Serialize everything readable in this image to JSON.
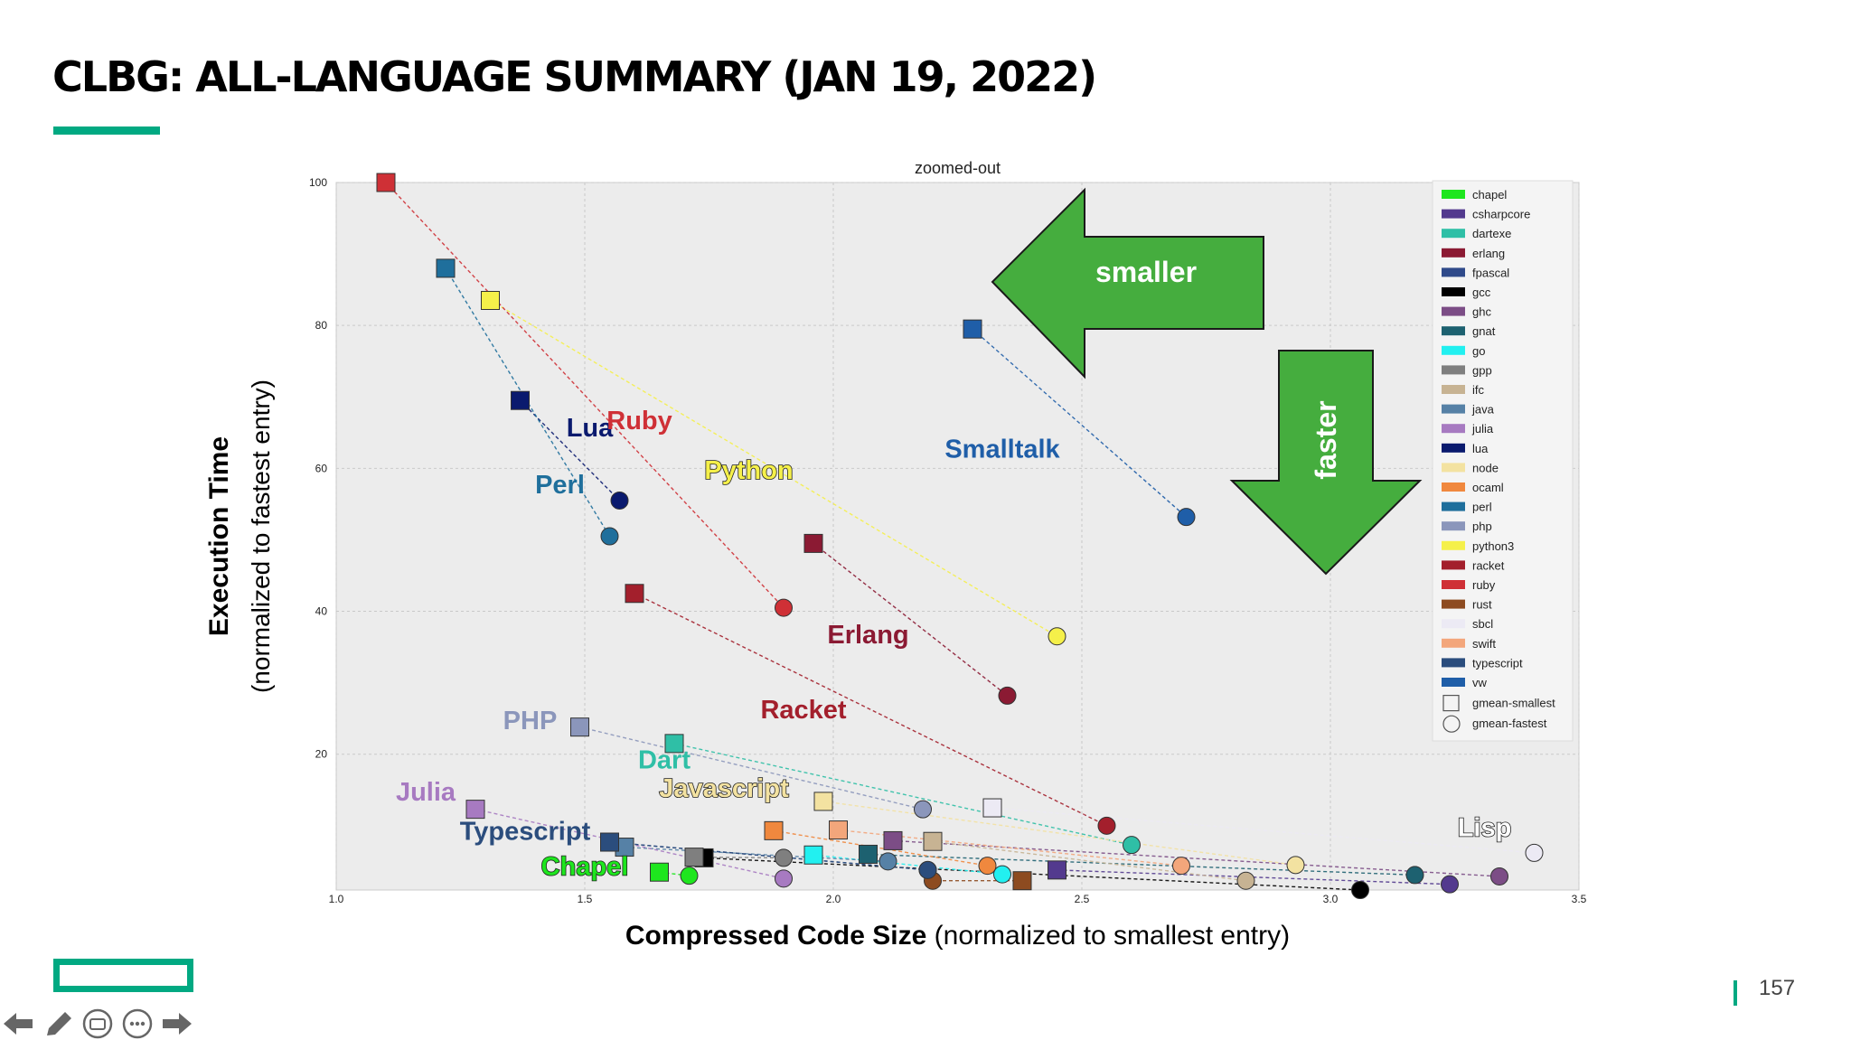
{
  "slide": {
    "title": "CLBG: ALL-LANGUAGE SUMMARY (JAN 19, 2022)",
    "page_number": "157",
    "accent_color": "#01a982"
  },
  "nav_icons": [
    "arrow-left-icon",
    "pencil-icon",
    "subtitles-icon",
    "more-icon",
    "arrow-right-icon"
  ],
  "arrows": {
    "smaller_label": "smaller",
    "faster_label": "faster",
    "color": "#45ad3e"
  },
  "chart_data": {
    "type": "scatter",
    "title": "zoomed-out",
    "xlabel_bold": "Compressed Code Size",
    "xlabel_rest": " (normalized to smallest entry)",
    "ylabel_bold": "Execution Time",
    "ylabel_rest": "(normalized to fastest entry)",
    "xlim": [
      1.0,
      3.5
    ],
    "ylim": [
      1,
      100
    ],
    "xticks": [
      1.0,
      1.5,
      2.0,
      2.5,
      3.0,
      3.5
    ],
    "xtick_labels": [
      "1.0",
      "1.5",
      "2.0",
      "2.5",
      "3.0",
      "3.5"
    ],
    "yticks": [
      20,
      40,
      60,
      80,
      100
    ],
    "ytick_labels": [
      "20",
      "40",
      "60",
      "80",
      "100"
    ],
    "grid": true,
    "legend_position": "top-right",
    "series": [
      {
        "name": "chapel",
        "color": "#1ee61e",
        "smallest": [
          1.65,
          3.5
        ],
        "fastest": [
          1.71,
          3.0
        ],
        "label": "Chapel",
        "label_at": [
          1.5,
          3.1
        ],
        "label_color": "#1ee61e",
        "outlined": true
      },
      {
        "name": "csharpcore",
        "color": "#533a8e",
        "smallest": [
          2.45,
          3.8
        ],
        "fastest": [
          3.24,
          1.8
        ],
        "label": "",
        "label_at": null,
        "label_color": "#533a8e",
        "outlined": false
      },
      {
        "name": "dartexe",
        "color": "#2fbfa6",
        "smallest": [
          1.68,
          21.5
        ],
        "fastest": [
          2.6,
          7.3
        ],
        "label": "Dart",
        "label_at": [
          1.66,
          18.0
        ],
        "label_color": "#2fbfa6",
        "outlined": false
      },
      {
        "name": "erlang",
        "color": "#8b1a33",
        "smallest": [
          1.96,
          49.5
        ],
        "fastest": [
          2.35,
          28.2
        ],
        "label": "Erlang",
        "label_at": [
          2.07,
          35.5
        ],
        "label_color": "#8b1a33",
        "outlined": false
      },
      {
        "name": "fpascal",
        "color": "#2f4a8a",
        "smallest": [
          1.55,
          7.7
        ],
        "fastest": [
          2.19,
          3.8
        ],
        "label": "",
        "label_at": null,
        "label_color": "#2f4a8a",
        "outlined": false
      },
      {
        "name": "gcc",
        "color": "#000000",
        "smallest": [
          1.74,
          5.5
        ],
        "fastest": [
          3.06,
          1.0
        ],
        "label": "",
        "label_at": null,
        "label_color": "#000000",
        "outlined": false
      },
      {
        "name": "ghc",
        "color": "#7c4d86",
        "smallest": [
          2.12,
          7.9
        ],
        "fastest": [
          3.34,
          2.9
        ],
        "label": "",
        "label_at": null,
        "label_color": "#7c4d86",
        "outlined": false
      },
      {
        "name": "gnat",
        "color": "#1d6170",
        "smallest": [
          2.07,
          6.0
        ],
        "fastest": [
          3.17,
          3.1
        ],
        "label": "",
        "label_at": null,
        "label_color": "#1d6170",
        "outlined": false
      },
      {
        "name": "go",
        "color": "#22f0f0",
        "smallest": [
          1.96,
          5.9
        ],
        "fastest": [
          2.34,
          3.2
        ],
        "label": "",
        "label_at": null,
        "label_color": "#22f0f0",
        "outlined": false
      },
      {
        "name": "gpp",
        "color": "#7f7f7f",
        "smallest": [
          1.72,
          5.6
        ],
        "fastest": [
          1.9,
          5.5
        ],
        "label": "",
        "label_at": null,
        "label_color": "#7f7f7f",
        "outlined": false
      },
      {
        "name": "ifc",
        "color": "#c7b393",
        "smallest": [
          2.2,
          7.8
        ],
        "fastest": [
          2.83,
          2.3
        ],
        "label": "",
        "label_at": null,
        "label_color": "#c7b393",
        "outlined": false
      },
      {
        "name": "java",
        "color": "#5681a6",
        "smallest": [
          1.58,
          7.0
        ],
        "fastest": [
          2.11,
          5.0
        ],
        "label": "",
        "label_at": null,
        "label_color": "#5681a6",
        "outlined": false
      },
      {
        "name": "julia",
        "color": "#a77ac1",
        "smallest": [
          1.28,
          12.3
        ],
        "fastest": [
          1.9,
          2.6
        ],
        "label": "Julia",
        "label_at": [
          1.18,
          13.5
        ],
        "label_color": "#a77ac1",
        "outlined": false
      },
      {
        "name": "lua",
        "color": "#0a1a6e",
        "smallest": [
          1.37,
          69.5
        ],
        "fastest": [
          1.57,
          55.5
        ],
        "label": "Lua",
        "label_at": [
          1.51,
          64.5
        ],
        "label_color": "#0a1a6e",
        "outlined": false
      },
      {
        "name": "node",
        "color": "#f3e2a1",
        "smallest": [
          1.98,
          13.4
        ],
        "fastest": [
          2.93,
          4.5
        ],
        "label": "Javascript",
        "label_at": [
          1.78,
          14.0
        ],
        "label_color": "#f3e2a1",
        "outlined": true
      },
      {
        "name": "ocaml",
        "color": "#f0883e",
        "smallest": [
          1.88,
          9.3
        ],
        "fastest": [
          2.31,
          4.4
        ],
        "label": "",
        "label_at": null,
        "label_color": "#f0883e",
        "outlined": false
      },
      {
        "name": "perl",
        "color": "#1f6f9c",
        "smallest": [
          1.22,
          88.0
        ],
        "fastest": [
          1.55,
          50.5
        ],
        "label": "Perl",
        "label_at": [
          1.45,
          56.5
        ],
        "label_color": "#1f6f9c",
        "outlined": false
      },
      {
        "name": "php",
        "color": "#8b96bb",
        "smallest": [
          1.49,
          23.8
        ],
        "fastest": [
          2.18,
          12.3
        ],
        "label": "PHP",
        "label_at": [
          1.39,
          23.5
        ],
        "label_color": "#8b96bb",
        "outlined": false
      },
      {
        "name": "python3",
        "color": "#f5f04a",
        "smallest": [
          1.31,
          83.5
        ],
        "fastest": [
          2.45,
          36.5
        ],
        "label": "Python",
        "label_at": [
          1.83,
          58.5
        ],
        "label_color": "#f5f04a",
        "outlined": true
      },
      {
        "name": "racket",
        "color": "#a31f2c",
        "smallest": [
          1.6,
          42.5
        ],
        "fastest": [
          2.55,
          10.0
        ],
        "label": "Racket",
        "label_at": [
          1.94,
          25.0
        ],
        "label_color": "#a31f2c",
        "outlined": false
      },
      {
        "name": "ruby",
        "color": "#cf3036",
        "smallest": [
          1.1,
          100.0
        ],
        "fastest": [
          1.9,
          40.5
        ],
        "label": "Ruby",
        "label_at": [
          1.61,
          65.5
        ],
        "label_color": "#cf3036",
        "outlined": false
      },
      {
        "name": "rust",
        "color": "#8d4b20",
        "smallest": [
          2.38,
          2.3
        ],
        "fastest": [
          2.2,
          2.3
        ],
        "label": "",
        "label_at": null,
        "label_color": "#8d4b20",
        "outlined": false
      },
      {
        "name": "sbcl",
        "color": "#eceaf4",
        "smallest": [
          2.32,
          12.5
        ],
        "fastest": [
          3.41,
          6.2
        ],
        "label": "Lisp",
        "label_at": [
          3.31,
          8.5
        ],
        "label_color": "#ffffff",
        "outlined": true
      },
      {
        "name": "swift",
        "color": "#f3a67b",
        "smallest": [
          2.01,
          9.4
        ],
        "fastest": [
          2.7,
          4.4
        ],
        "label": "",
        "label_at": null,
        "label_color": "#f3a67b",
        "outlined": false
      },
      {
        "name": "typescript",
        "color": "#2b4d7d",
        "smallest": [
          1.55,
          7.7
        ],
        "fastest": [
          2.19,
          3.8
        ],
        "label": "Typescript",
        "label_at": [
          1.38,
          8.0
        ],
        "label_color": "#2b4d7d",
        "outlined": false
      },
      {
        "name": "vw",
        "color": "#1f5ea8",
        "smallest": [
          2.28,
          79.5
        ],
        "fastest": [
          2.71,
          53.2
        ],
        "label": "Smalltalk",
        "label_at": [
          2.34,
          61.5
        ],
        "label_color": "#1f5ea8",
        "outlined": false
      }
    ],
    "legend_extra": [
      "gmean-smallest",
      "gmean-fastest"
    ]
  }
}
